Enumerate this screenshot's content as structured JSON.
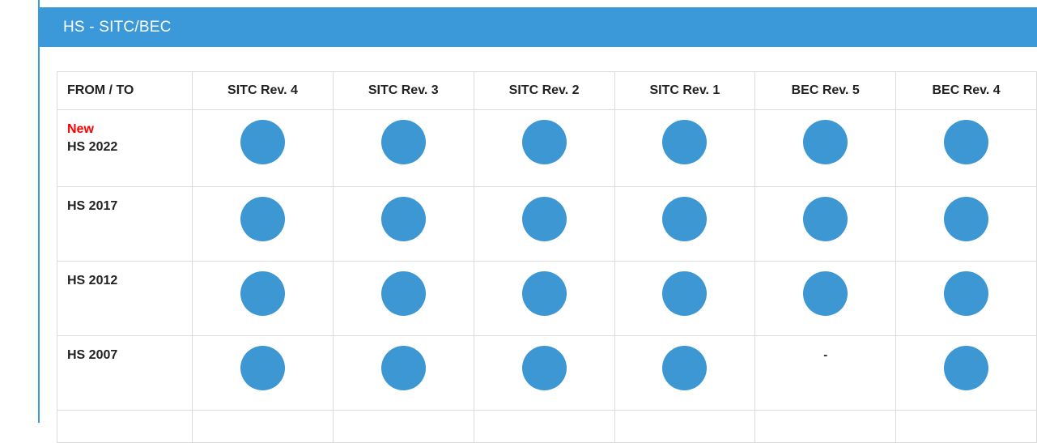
{
  "panel": {
    "title": "HS - SITC/BEC"
  },
  "table": {
    "columns": [
      "FROM / TO",
      "SITC Rev. 4",
      "SITC Rev. 3",
      "SITC Rev. 2",
      "SITC Rev. 1",
      "BEC Rev. 5",
      "BEC Rev. 4"
    ],
    "rows": [
      {
        "badge": "New",
        "label": "HS 2022",
        "cells": [
          "dot",
          "dot",
          "dot",
          "dot",
          "dot",
          "dot"
        ]
      },
      {
        "badge": "",
        "label": "HS 2017",
        "cells": [
          "dot",
          "dot",
          "dot",
          "dot",
          "dot",
          "dot"
        ]
      },
      {
        "badge": "",
        "label": "HS 2012",
        "cells": [
          "dot",
          "dot",
          "dot",
          "dot",
          "dot",
          "dot"
        ]
      },
      {
        "badge": "",
        "label": "HS 2007",
        "cells": [
          "dot",
          "dot",
          "dot",
          "dot",
          "-",
          "dot"
        ]
      },
      {
        "badge": "",
        "label": "",
        "cells": [
          "",
          "",
          "",
          "",
          "",
          ""
        ]
      }
    ],
    "dot_meaning": "available",
    "dash": "-"
  },
  "colors": {
    "accent_blue": "#3b99da",
    "dot_blue": "#3d97d3",
    "new_red": "#ff0000",
    "border_gray": "#dcdcdc",
    "text": "#222222"
  }
}
